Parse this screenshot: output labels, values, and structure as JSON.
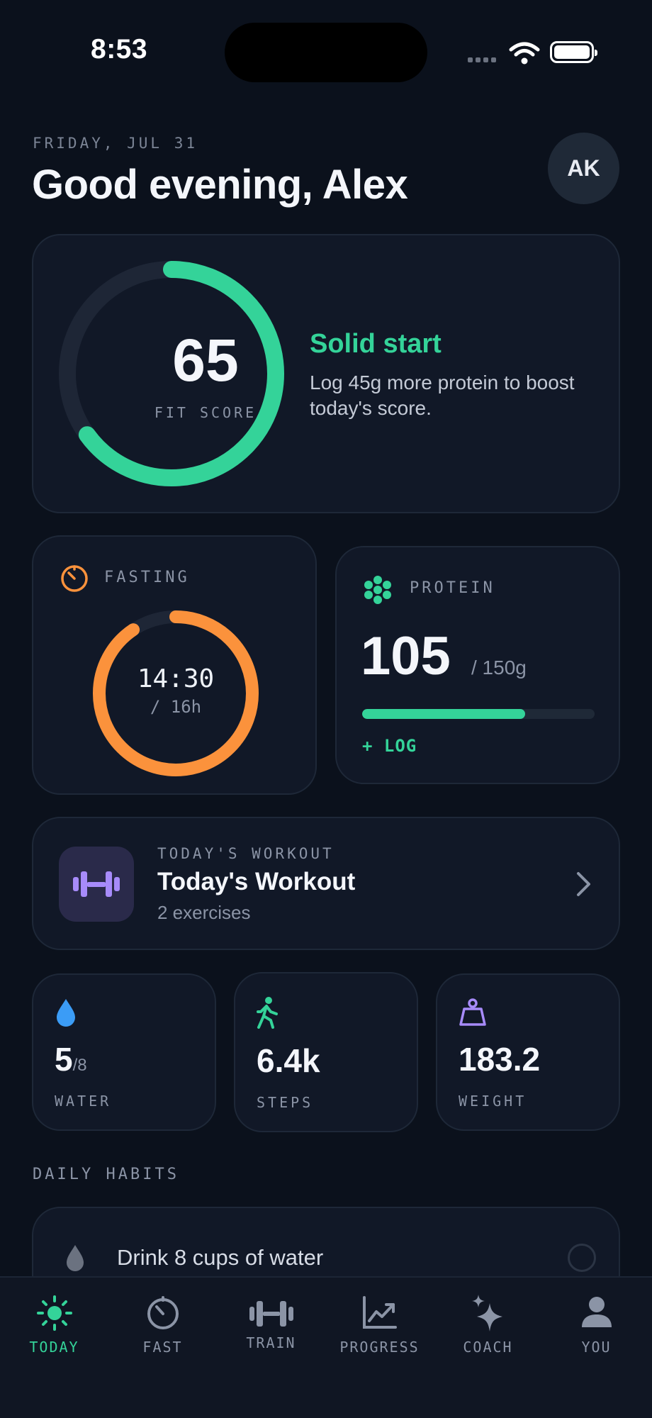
{
  "status_bar": {
    "time": "8:53"
  },
  "header": {
    "date": "FRIDAY, JUL 31",
    "greeting": "Good evening, Alex",
    "avatar_initials": "AK"
  },
  "fit_score": {
    "value": "65",
    "label": "FIT SCORE",
    "progress": 0.65,
    "title": "Solid start",
    "description": "Log 45g more protein to boost today's score.",
    "color": "#34d399"
  },
  "fasting": {
    "label": "FASTING",
    "elapsed": "14:30",
    "target": "/ 16h",
    "progress": 0.906,
    "color": "#fb923c"
  },
  "protein": {
    "label": "PROTEIN",
    "value": "105",
    "goal": "/ 150g",
    "progress": 0.7,
    "log_label": "+ LOG",
    "color": "#34d399"
  },
  "workout": {
    "kicker": "TODAY'S WORKOUT",
    "title": "Today's Workout",
    "subtitle": "2 exercises",
    "icon": "dumbbell-icon"
  },
  "stats": [
    {
      "value": "5",
      "suffix": "/8",
      "label": "WATER",
      "icon": "water-drop-icon"
    },
    {
      "value": "6.4k",
      "suffix": "",
      "label": "STEPS",
      "icon": "walking-icon"
    },
    {
      "value": "183.2",
      "suffix": "",
      "label": "WEIGHT",
      "icon": "weight-icon"
    }
  ],
  "habits": {
    "heading": "DAILY HABITS",
    "items": [
      {
        "text": "Drink 8 cups of water",
        "done": false
      }
    ]
  },
  "nav": [
    {
      "label": "TODAY",
      "icon": "sun-icon",
      "active": true
    },
    {
      "label": "FAST",
      "icon": "timer-icon",
      "active": false
    },
    {
      "label": "TRAIN",
      "icon": "dumbbell-icon",
      "active": false
    },
    {
      "label": "PROGRESS",
      "icon": "chart-icon",
      "active": false
    },
    {
      "label": "COACH",
      "icon": "sparkle-icon",
      "active": false
    },
    {
      "label": "YOU",
      "icon": "person-icon",
      "active": false
    }
  ]
}
